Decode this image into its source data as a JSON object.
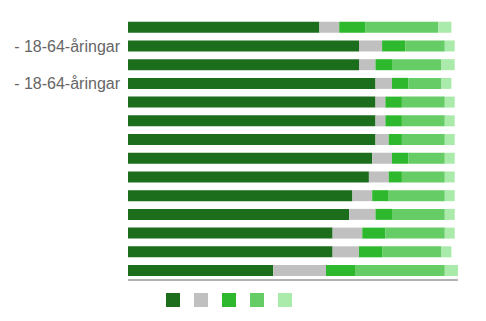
{
  "chart_data": {
    "type": "bar",
    "orientation": "horizontal",
    "stacked": true,
    "categories": [
      null,
      "- 18-64-åringar",
      null,
      "- 18-64-åringar",
      null,
      null,
      null,
      null,
      null,
      null,
      null,
      null,
      null,
      null
    ],
    "series": [
      {
        "color": "#1c6e1c",
        "values": [
          58,
          70,
          70,
          75,
          75,
          75,
          75,
          74,
          73,
          68,
          67,
          62,
          62,
          44
        ]
      },
      {
        "color": "#c0c0c0",
        "values": [
          6,
          7,
          5,
          5,
          3,
          3,
          4,
          6,
          6,
          6,
          8,
          9,
          8,
          16
        ]
      },
      {
        "color": "#2db82d",
        "values": [
          8,
          7,
          5,
          5,
          5,
          5,
          4,
          5,
          4,
          5,
          5,
          7,
          7,
          9
        ]
      },
      {
        "color": "#66cc66",
        "values": [
          22,
          12,
          15,
          10,
          13,
          13,
          13,
          11,
          13,
          17,
          16,
          18,
          18,
          27
        ]
      },
      {
        "color": "#aaeaaa",
        "values": [
          4,
          3,
          4,
          3,
          3,
          3,
          3,
          3,
          3,
          3,
          3,
          3,
          3,
          4
        ]
      }
    ],
    "xlim": [
      0,
      100
    ],
    "legend": "bottom",
    "tick_labels": "y"
  }
}
